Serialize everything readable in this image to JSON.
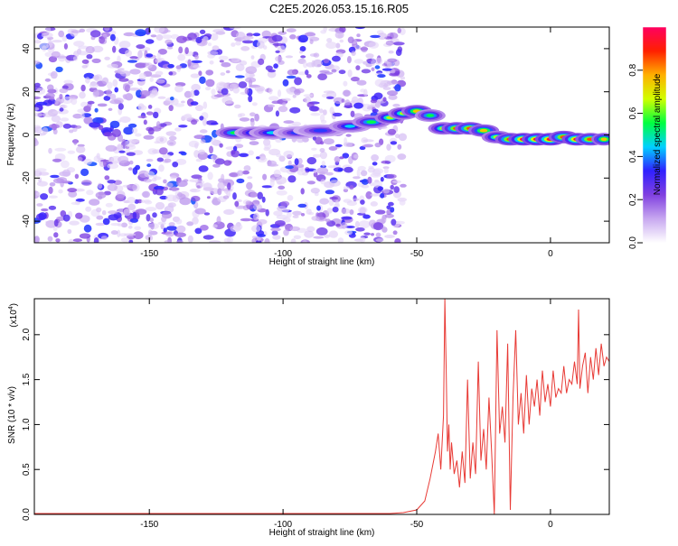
{
  "title": "C2E5.2026.053.15.16.R05",
  "colors": {
    "snr_line": "#e83a35",
    "frame": "#000000"
  },
  "chart_data": [
    {
      "type": "heatmap",
      "panel": "spectrogram",
      "title": "C2E5.2026.053.15.16.R05",
      "xlabel": "Height of straight line (km)",
      "ylabel": "Frequency (Hz)",
      "xlim": [
        -193,
        22
      ],
      "ylim": [
        -50,
        50
      ],
      "x_ticks": [
        -150,
        -100,
        -50,
        0
      ],
      "x_tick_labels": [
        "-150",
        "-100",
        "-50",
        "0"
      ],
      "y_ticks": [
        40,
        20,
        0,
        -20,
        -40
      ],
      "y_tick_labels": [
        "40",
        "20",
        "0",
        "-20",
        "-40"
      ],
      "colorbar": {
        "label": "Normalized spectral amplitude",
        "range": [
          0.0,
          1.0
        ],
        "ticks": [
          0.0,
          0.2,
          0.4,
          0.6,
          0.8
        ],
        "tick_labels": [
          "0.0",
          "0.2",
          "0.4",
          "0.6",
          "0.8"
        ],
        "colormap": [
          "#ffffff",
          "#c8a8f0",
          "#8040e0",
          "#3020ff",
          "#00d0ff",
          "#00ff40",
          "#d0ff00",
          "#ffb000",
          "#ff2000",
          "#ff0060"
        ]
      },
      "noise_region_x": [
        -193,
        -55
      ],
      "signal_track": {
        "x": [
          -118,
          -111,
          -104,
          -95,
          -86,
          -75,
          -67,
          -60,
          -55,
          -50,
          -45,
          -40,
          -35,
          -30,
          -25,
          -20,
          -15,
          -10,
          -5,
          0,
          5,
          10,
          15,
          20
        ],
        "frequency": [
          1,
          1,
          1,
          1,
          2,
          4,
          6,
          8,
          10,
          11,
          9,
          3,
          3,
          3,
          2,
          -1,
          -2,
          -2,
          -2,
          -2,
          -1,
          -2,
          -2,
          -2
        ],
        "amplitude": [
          0.5,
          0.4,
          0.4,
          0.3,
          0.3,
          0.4,
          0.5,
          0.6,
          0.6,
          0.7,
          0.5,
          0.6,
          0.8,
          0.8,
          0.7,
          0.6,
          0.8,
          0.9,
          0.9,
          0.9,
          0.8,
          0.9,
          0.8,
          0.7
        ]
      }
    },
    {
      "type": "line",
      "panel": "snr",
      "xlabel": "Height of straight line (km)",
      "ylabel": "SNR (10 * v/v)",
      "y_multiplier_label": "(x10",
      "y_multiplier_exp": "4",
      "y_multiplier_close": ")",
      "xlim": [
        -193,
        22
      ],
      "ylim": [
        0,
        2.4
      ],
      "x_ticks": [
        -150,
        -100,
        -50,
        0
      ],
      "x_tick_labels": [
        "-150",
        "-100",
        "-50",
        "0"
      ],
      "y_ticks": [
        0.0,
        0.5,
        1.0,
        1.5,
        2.0
      ],
      "y_tick_labels": [
        "0.0",
        "0.5",
        "1.0",
        "1.5",
        "2.0"
      ],
      "series": [
        {
          "x": [
            -193,
            -150,
            -100,
            -60,
            -55,
            -50,
            -47,
            -45,
            -43,
            -42,
            -41,
            -40,
            -39.5,
            -39,
            -38.5,
            -38,
            -37.5,
            -37,
            -36,
            -35,
            -34,
            -33,
            -32,
            -31,
            -30,
            -29,
            -28,
            -27,
            -26,
            -25,
            -24,
            -23,
            -22,
            -21,
            -20,
            -19,
            -18,
            -17,
            -16,
            -15,
            -14,
            -13,
            -12,
            -11,
            -10,
            -9,
            -8,
            -7,
            -6,
            -5,
            -4,
            -3,
            -2,
            -1,
            0,
            1,
            2,
            3,
            4,
            5,
            6,
            7,
            8,
            9,
            10,
            10.5,
            11,
            12,
            13,
            14,
            15,
            16,
            17,
            18,
            19,
            20,
            21,
            22
          ],
          "y": [
            0.01,
            0.01,
            0.01,
            0.01,
            0.02,
            0.05,
            0.15,
            0.4,
            0.7,
            0.9,
            0.5,
            1.1,
            2.4,
            1.6,
            0.7,
            1.0,
            0.5,
            0.8,
            0.45,
            0.6,
            0.3,
            0.7,
            0.35,
            1.5,
            0.4,
            0.8,
            0.45,
            1.7,
            0.6,
            0.95,
            0.5,
            1.3,
            0.7,
            0.0,
            2.05,
            0.9,
            1.2,
            0.8,
            1.9,
            0.05,
            1.3,
            2.05,
            1.0,
            1.35,
            0.9,
            1.55,
            1.0,
            1.4,
            1.2,
            1.5,
            1.1,
            1.6,
            1.25,
            1.45,
            1.2,
            1.6,
            1.3,
            1.4,
            1.35,
            1.65,
            1.35,
            1.5,
            1.45,
            1.7,
            1.45,
            2.28,
            1.4,
            1.65,
            1.8,
            1.35,
            1.75,
            1.5,
            1.85,
            1.55,
            1.9,
            1.65,
            1.75,
            1.7
          ]
        }
      ]
    }
  ]
}
